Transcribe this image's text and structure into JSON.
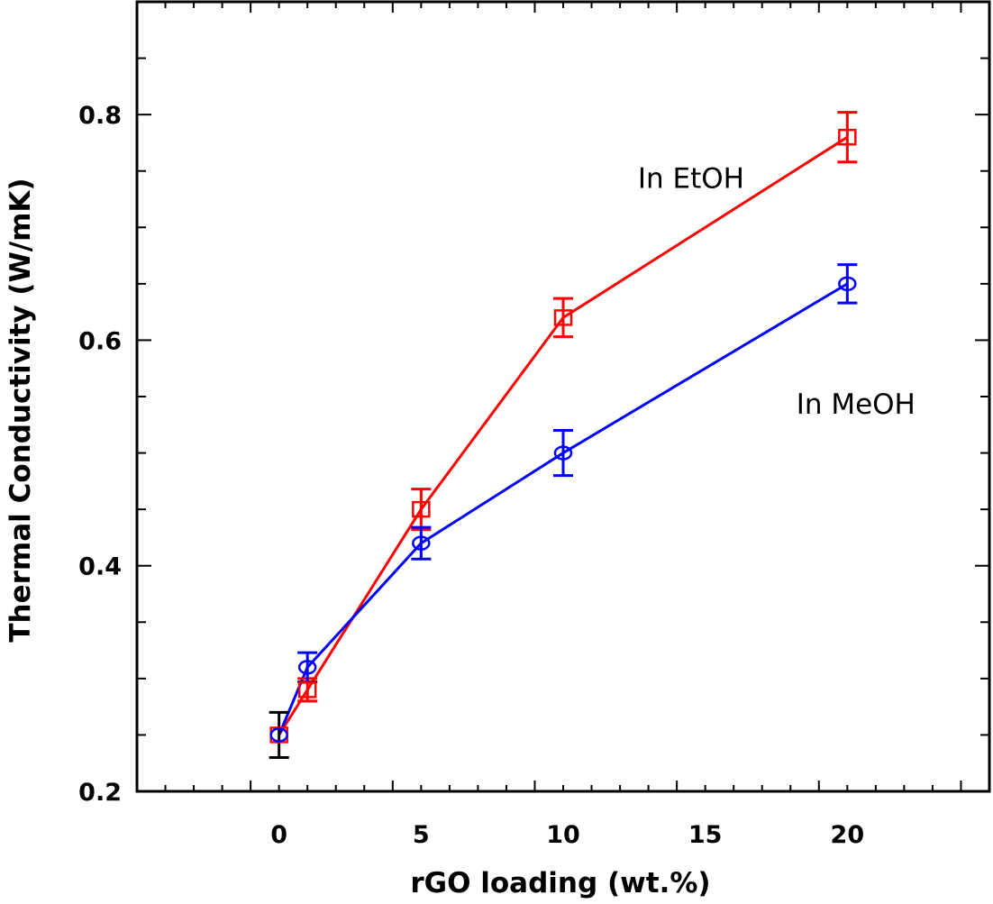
{
  "chart_data": {
    "type": "line",
    "title": "",
    "xlabel": "rGO loading (wt.%)",
    "ylabel": "Thermal Conductivity (W/mK)",
    "xlim": [
      -5,
      25
    ],
    "ylim": [
      0.2,
      0.9
    ],
    "x_tick_labels": [
      "0",
      "5",
      "10",
      "15",
      "20"
    ],
    "x_tick_values": [
      0,
      5,
      10,
      15,
      20
    ],
    "x_major_tick_values": [
      -1,
      4,
      9,
      14,
      19,
      24
    ],
    "x_minor_step": 1,
    "y_tick_labels": [
      "0.2",
      "0.4",
      "0.6",
      "0.8"
    ],
    "y_tick_values": [
      0.2,
      0.4,
      0.6,
      0.8
    ],
    "y_minor_step": 0.05,
    "grid": false,
    "series": [
      {
        "name": "In EtOH",
        "color": "#ff0000",
        "marker": "square",
        "x": [
          0,
          1,
          5,
          10,
          20
        ],
        "y": [
          0.25,
          0.29,
          0.45,
          0.62,
          0.78
        ],
        "error": [
          0.02,
          0.01,
          0.018,
          0.017,
          0.022
        ]
      },
      {
        "name": "In MeOH",
        "color": "#0000ff",
        "marker": "circle",
        "x": [
          0,
          1,
          5,
          10,
          20
        ],
        "y": [
          0.25,
          0.31,
          0.42,
          0.5,
          0.65
        ],
        "error": [
          0.02,
          0.013,
          0.014,
          0.02,
          0.017
        ]
      }
    ],
    "reference_point": {
      "x": 0,
      "y": 0.25,
      "error": 0.02,
      "color": "#000000"
    },
    "annotations": [
      {
        "text": "In EtOH",
        "x": 14.5,
        "y": 0.735
      },
      {
        "text": "In MeOH",
        "x": 20.3,
        "y": 0.535
      }
    ]
  }
}
